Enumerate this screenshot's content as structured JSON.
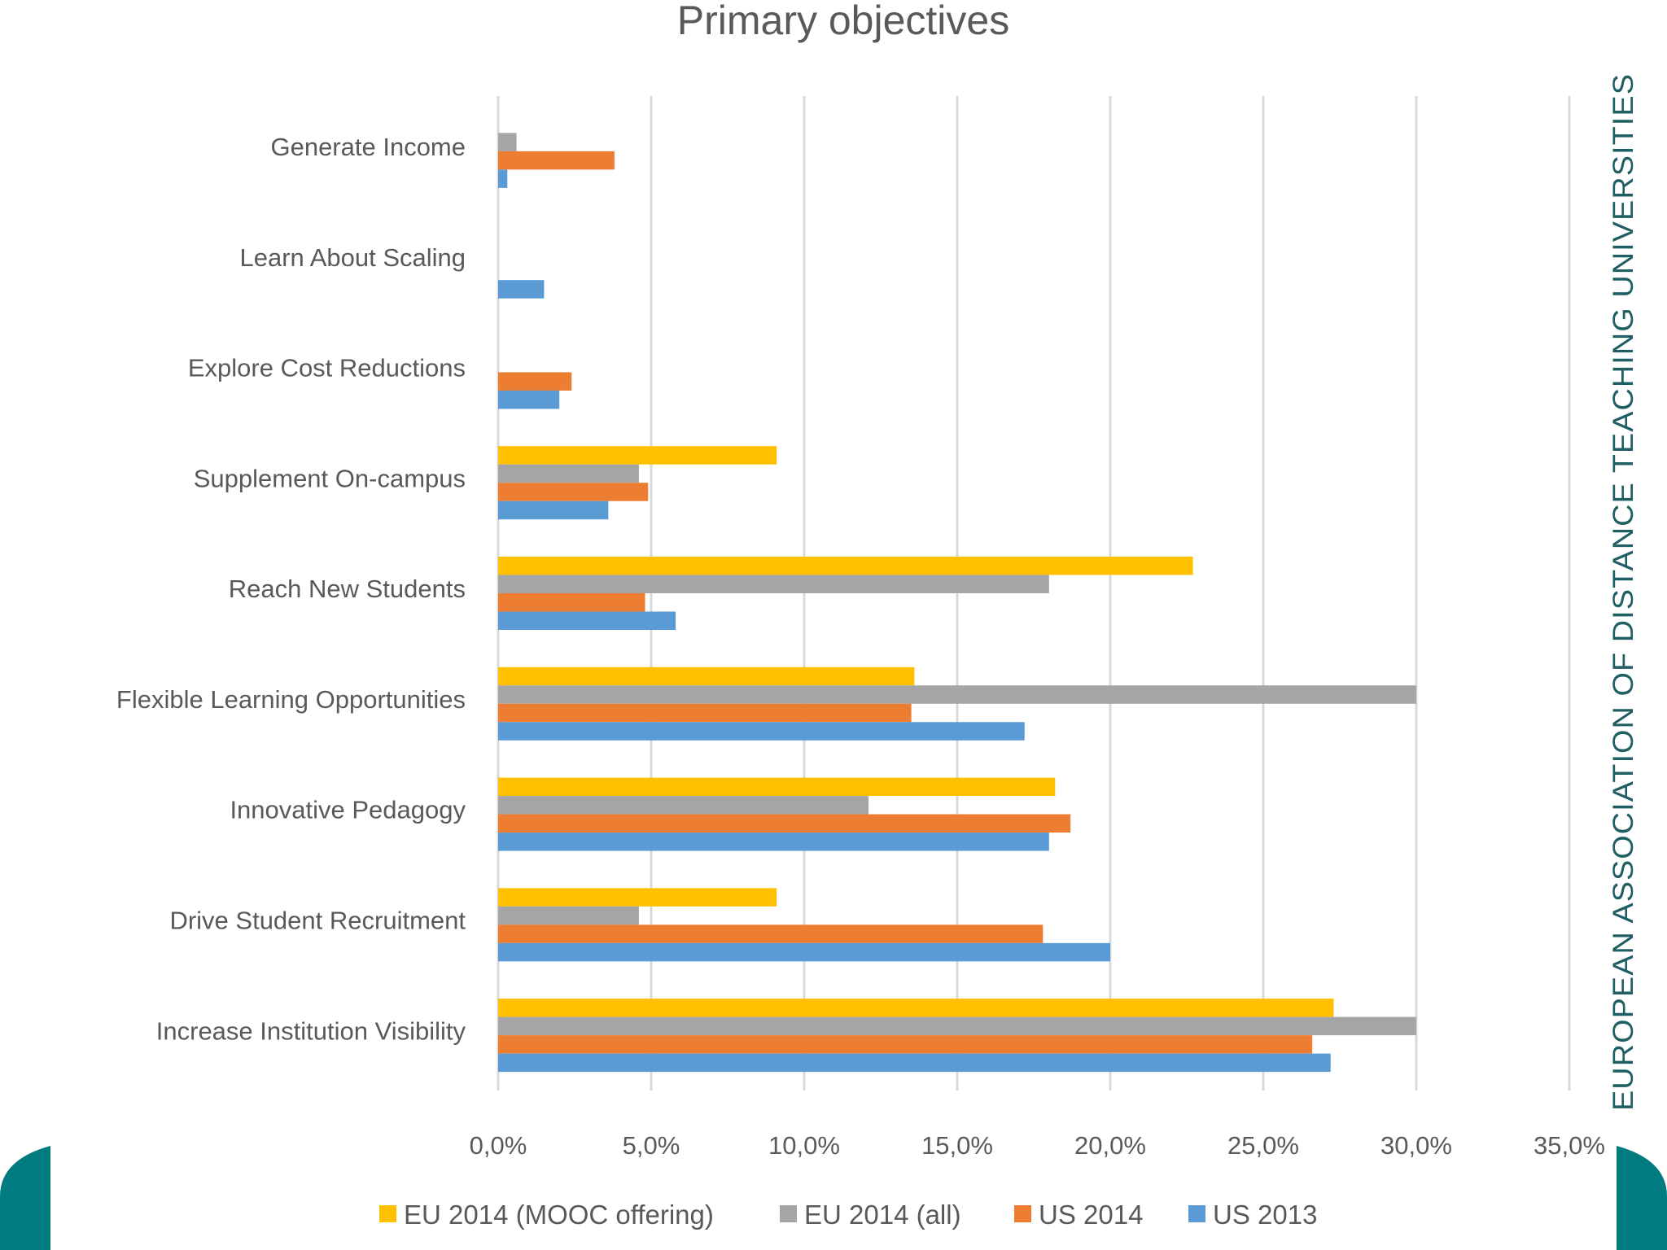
{
  "colors": {
    "eu_mooc": "#ffc000",
    "eu_all": "#a5a5a5",
    "us_2014": "#ed7d31",
    "us_2013": "#5b9bd5",
    "corner_teal": "#007b7f",
    "side_text": "#1f5e63"
  },
  "side_text": "EUROPEAN ASSOCIATION OF DISTANCE TEACHING UNIVERSITIES",
  "chart_data": {
    "type": "bar",
    "orientation": "horizontal",
    "title": "Primary objectives",
    "categories": [
      "Generate Income",
      "Learn About Scaling",
      "Explore Cost Reductions",
      "Supplement On-campus",
      "Reach New Students",
      "Flexible Learning Opportunities",
      "Innovative Pedagogy",
      "Drive Student Recruitment",
      "Increase Institution Visibility"
    ],
    "series": [
      {
        "name": "EU 2014 (MOOC offering)",
        "color": "#ffc000",
        "values": [
          0,
          0,
          0,
          9.1,
          22.7,
          13.6,
          18.2,
          9.1,
          27.3
        ]
      },
      {
        "name": "EU 2014 (all)",
        "color": "#a5a5a5",
        "values": [
          0.6,
          0,
          0,
          4.6,
          18.0,
          30.0,
          12.1,
          4.6,
          30.0
        ]
      },
      {
        "name": "US 2014",
        "color": "#ed7d31",
        "values": [
          3.8,
          0,
          2.4,
          4.9,
          4.8,
          13.5,
          18.7,
          17.8,
          26.6
        ]
      },
      {
        "name": "US 2013",
        "color": "#5b9bd5",
        "values": [
          0.3,
          1.5,
          2.0,
          3.6,
          5.8,
          17.2,
          18.0,
          20.0,
          27.2
        ]
      }
    ],
    "xlim": [
      0,
      35
    ],
    "xticks": [
      "0,0%",
      "5,0%",
      "10,0%",
      "15,0%",
      "20,0%",
      "25,0%",
      "30,0%",
      "35,0%"
    ],
    "xlabel": "",
    "ylabel": "",
    "grid": true,
    "legend": "bottom"
  }
}
